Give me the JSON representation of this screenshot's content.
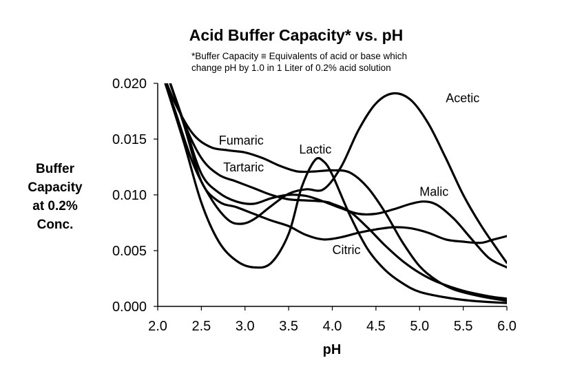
{
  "chart_data": {
    "type": "line",
    "title": "Acid Buffer Capacity* vs. pH",
    "subtitle_lines": [
      "*Buffer Capacity ≡ Equivalents of acid or base which",
      "change pH by 1.0 in 1 Liter of 0.2% acid solution"
    ],
    "xlabel": "pH",
    "ylabel_lines": [
      "Buffer",
      "Capacity",
      "at 0.2%",
      "Conc."
    ],
    "xlim": [
      2.0,
      6.0
    ],
    "ylim": [
      0.0,
      0.02
    ],
    "xticks": [
      "2.0",
      "2.5",
      "3.0",
      "3.5",
      "4.0",
      "4.5",
      "5.0",
      "5.5",
      "6.0"
    ],
    "yticks": [
      "0.000",
      "0.005",
      "0.010",
      "0.015",
      "0.020"
    ],
    "grid": false,
    "legend": "none",
    "line_color": "#000000",
    "series": [
      {
        "name": "Acetic",
        "label_pos": [
          5.3,
          0.0183
        ],
        "points": [
          [
            2.05,
            0.0209
          ],
          [
            2.2,
            0.0175
          ],
          [
            2.4,
            0.0129
          ],
          [
            2.6,
            0.0098
          ],
          [
            2.8,
            0.0078
          ],
          [
            2.95,
            0.0074
          ],
          [
            3.1,
            0.0078
          ],
          [
            3.3,
            0.009
          ],
          [
            3.5,
            0.0101
          ],
          [
            3.7,
            0.0105
          ],
          [
            3.9,
            0.0105
          ],
          [
            4.1,
            0.0125
          ],
          [
            4.3,
            0.0158
          ],
          [
            4.5,
            0.0182
          ],
          [
            4.7,
            0.0191
          ],
          [
            4.9,
            0.0185
          ],
          [
            5.1,
            0.0164
          ],
          [
            5.3,
            0.0133
          ],
          [
            5.5,
            0.01
          ],
          [
            5.7,
            0.0073
          ],
          [
            5.9,
            0.005
          ],
          [
            6.0,
            0.0039
          ]
        ]
      },
      {
        "name": "Fumaric",
        "label_pos": [
          2.7,
          0.0145
        ],
        "points": [
          [
            2.05,
            0.0211
          ],
          [
            2.2,
            0.0182
          ],
          [
            2.4,
            0.0155
          ],
          [
            2.6,
            0.0143
          ],
          [
            2.8,
            0.014
          ],
          [
            3.0,
            0.0138
          ],
          [
            3.2,
            0.0133
          ],
          [
            3.4,
            0.0126
          ],
          [
            3.6,
            0.0121
          ],
          [
            3.8,
            0.0121
          ],
          [
            4.0,
            0.0122
          ],
          [
            4.2,
            0.012
          ],
          [
            4.4,
            0.0107
          ],
          [
            4.6,
            0.0085
          ],
          [
            4.8,
            0.0058
          ],
          [
            5.0,
            0.0036
          ],
          [
            5.2,
            0.0023
          ],
          [
            5.4,
            0.0015
          ],
          [
            5.7,
            0.0009
          ],
          [
            6.0,
            0.0005
          ]
        ]
      },
      {
        "name": "Lactic",
        "label_pos": [
          3.62,
          0.0137
        ],
        "points": [
          [
            2.05,
            0.0209
          ],
          [
            2.3,
            0.0147
          ],
          [
            2.5,
            0.0093
          ],
          [
            2.7,
            0.0058
          ],
          [
            2.9,
            0.0041
          ],
          [
            3.1,
            0.0035
          ],
          [
            3.3,
            0.0039
          ],
          [
            3.5,
            0.0065
          ],
          [
            3.65,
            0.0107
          ],
          [
            3.8,
            0.0131
          ],
          [
            3.9,
            0.013
          ],
          [
            4.0,
            0.0118
          ],
          [
            4.2,
            0.0082
          ],
          [
            4.4,
            0.0052
          ],
          [
            4.6,
            0.0033
          ],
          [
            4.8,
            0.0021
          ],
          [
            5.0,
            0.0013
          ],
          [
            5.3,
            0.0008
          ],
          [
            5.6,
            0.0005
          ],
          [
            6.0,
            0.0003
          ]
        ]
      },
      {
        "name": "Tartaric",
        "label_pos": [
          2.75,
          0.0121
        ],
        "points": [
          [
            2.1,
            0.021
          ],
          [
            2.3,
            0.0165
          ],
          [
            2.5,
            0.0133
          ],
          [
            2.7,
            0.0118
          ],
          [
            2.9,
            0.0112
          ],
          [
            3.1,
            0.0106
          ],
          [
            3.3,
            0.01
          ],
          [
            3.5,
            0.0096
          ],
          [
            3.7,
            0.0095
          ],
          [
            3.9,
            0.0094
          ],
          [
            4.0,
            0.0092
          ],
          [
            4.2,
            0.0085
          ],
          [
            4.4,
            0.0071
          ],
          [
            4.6,
            0.0055
          ],
          [
            4.8,
            0.0041
          ],
          [
            5.0,
            0.003
          ],
          [
            5.2,
            0.0022
          ],
          [
            5.5,
            0.0014
          ],
          [
            5.8,
            0.0009
          ],
          [
            6.0,
            0.0007
          ]
        ]
      },
      {
        "name": "Malic",
        "label_pos": [
          5.0,
          0.0099
        ],
        "points": [
          [
            2.1,
            0.021
          ],
          [
            2.3,
            0.0165
          ],
          [
            2.5,
            0.0119
          ],
          [
            2.7,
            0.0102
          ],
          [
            2.9,
            0.0094
          ],
          [
            3.1,
            0.0092
          ],
          [
            3.3,
            0.0097
          ],
          [
            3.5,
            0.01
          ],
          [
            3.7,
            0.0099
          ],
          [
            3.9,
            0.0094
          ],
          [
            4.1,
            0.0088
          ],
          [
            4.3,
            0.0083
          ],
          [
            4.5,
            0.0083
          ],
          [
            4.7,
            0.0087
          ],
          [
            4.9,
            0.0092
          ],
          [
            5.05,
            0.0094
          ],
          [
            5.2,
            0.0091
          ],
          [
            5.4,
            0.0078
          ],
          [
            5.6,
            0.006
          ],
          [
            5.8,
            0.0043
          ],
          [
            6.0,
            0.0035
          ]
        ]
      },
      {
        "name": "Citric",
        "label_pos": [
          4.0,
          0.0047
        ],
        "points": [
          [
            2.1,
            0.021
          ],
          [
            2.3,
            0.0163
          ],
          [
            2.5,
            0.0112
          ],
          [
            2.7,
            0.0094
          ],
          [
            2.9,
            0.0089
          ],
          [
            3.1,
            0.0083
          ],
          [
            3.3,
            0.0077
          ],
          [
            3.5,
            0.0072
          ],
          [
            3.7,
            0.0064
          ],
          [
            3.9,
            0.006
          ],
          [
            4.1,
            0.0062
          ],
          [
            4.3,
            0.0066
          ],
          [
            4.5,
            0.0069
          ],
          [
            4.7,
            0.0071
          ],
          [
            4.9,
            0.007
          ],
          [
            5.1,
            0.0066
          ],
          [
            5.3,
            0.006
          ],
          [
            5.5,
            0.0058
          ],
          [
            5.7,
            0.0057
          ],
          [
            5.85,
            0.006
          ],
          [
            6.0,
            0.0063
          ]
        ]
      }
    ]
  }
}
